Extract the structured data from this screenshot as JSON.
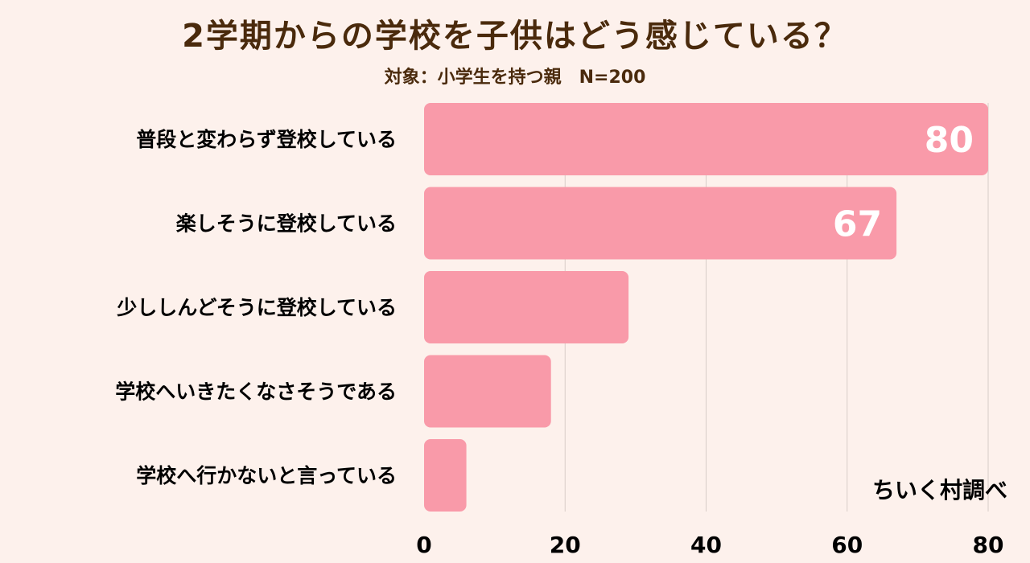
{
  "title": "2学期からの学校を子供はどう感じている？",
  "subtitle": "対象：小学生を持つ親　N=200",
  "credit": "ちいく村調べ",
  "colors": {
    "bar": "#f99aa9",
    "grid": "#d8cdc8",
    "value_label": "#ffffff",
    "background": "#fdf1ec"
  },
  "chart_data": {
    "type": "bar",
    "orientation": "horizontal",
    "categories": [
      "普段と変わらず登校している",
      "楽しそうに登校している",
      "少ししんどそうに登校している",
      "学校へいきたくなさそうである",
      "学校へ行かないと言っている"
    ],
    "values": [
      80,
      67,
      29,
      18,
      6
    ],
    "data_labels": [
      "80",
      "67",
      "",
      "",
      ""
    ],
    "xlim": [
      0,
      80
    ],
    "xticks": [
      0,
      20,
      40,
      60,
      80
    ],
    "grid": true,
    "legend": "none"
  }
}
